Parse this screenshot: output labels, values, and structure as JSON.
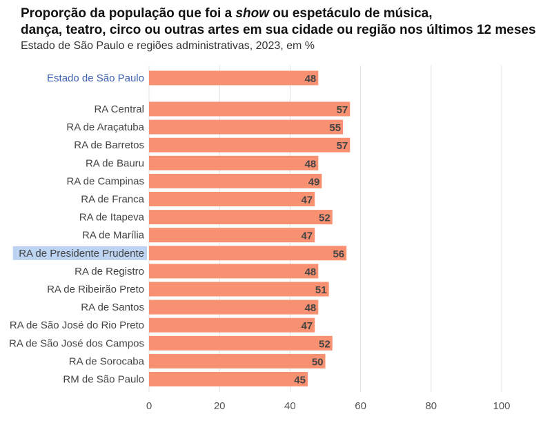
{
  "header": {
    "title_pre": "Proporção da população que foi a ",
    "title_em": "show",
    "title_post": " ou espetáculo de música,",
    "title_line2": "dança, teatro, circo ou outras artes em sua cidade ou região nos últimos 12 meses",
    "subtitle": "Estado de São Paulo e regiões administrativas, 2023, em %"
  },
  "colors": {
    "bar": "#f79172",
    "highlight_text": "#3c5fb0",
    "highlight_bg": "#bcd3f2",
    "grid": "#e2e2e2"
  },
  "chart_data": {
    "type": "bar",
    "orientation": "horizontal",
    "categories": [
      "Estado de São Paulo",
      "RA Central",
      "RA de Araçatuba",
      "RA de Barretos",
      "RA de Bauru",
      "RA de Campinas",
      "RA de Franca",
      "RA de Itapeva",
      "RA de Marília",
      "RA de Presidente Prudente",
      "RA de Registro",
      "RA de Ribeirão Preto",
      "RA de Santos",
      "RA de São José do Rio Preto",
      "RA de São José dos Campos",
      "RA de Sorocaba",
      "RM de São Paulo"
    ],
    "values": [
      48,
      57,
      55,
      57,
      48,
      49,
      47,
      52,
      47,
      56,
      48,
      51,
      48,
      47,
      52,
      50,
      45
    ],
    "highlight_blue_text": [
      "Estado de São Paulo"
    ],
    "highlight_background": [
      "RA de Presidente Prudente"
    ],
    "x_ticks": [
      0,
      20,
      40,
      60,
      80,
      100
    ],
    "xlim": [
      0,
      100
    ],
    "grid": "vertical"
  }
}
